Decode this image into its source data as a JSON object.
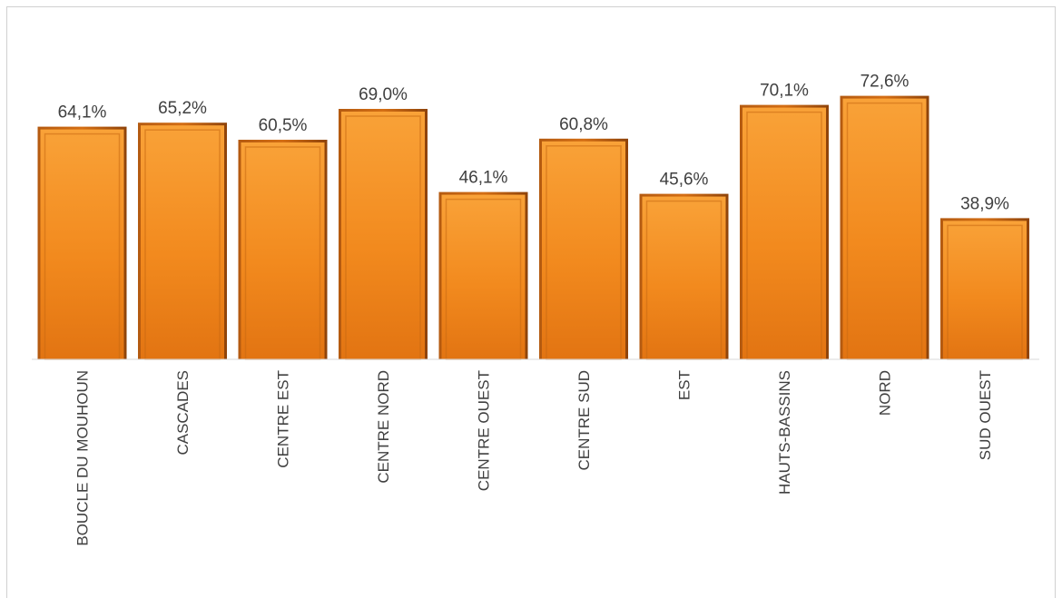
{
  "chart_data": {
    "type": "bar",
    "categories": [
      "BOUCLE DU MOUHOUN",
      "CASCADES",
      "CENTRE EST",
      "CENTRE NORD",
      "CENTRE OUEST",
      "CENTRE SUD",
      "EST",
      "HAUTS-BASSINS",
      "NORD",
      "SUD OUEST"
    ],
    "values": [
      64.1,
      65.2,
      60.5,
      69.0,
      46.1,
      60.8,
      45.6,
      70.1,
      72.6,
      38.9
    ],
    "value_labels": [
      "64,1%",
      "65,2%",
      "60,5%",
      "69,0%",
      "46,1%",
      "60,8%",
      "45,6%",
      "70,1%",
      "72,6%",
      "38,9%"
    ],
    "title": "",
    "xlabel": "",
    "ylabel": "",
    "ylim": [
      0,
      80
    ],
    "grid": false,
    "legend": "none",
    "colors": {
      "bar": "#F7941D",
      "bar_dark": "#C8620E",
      "axis": "#d9d9d9",
      "text": "#404040"
    }
  }
}
